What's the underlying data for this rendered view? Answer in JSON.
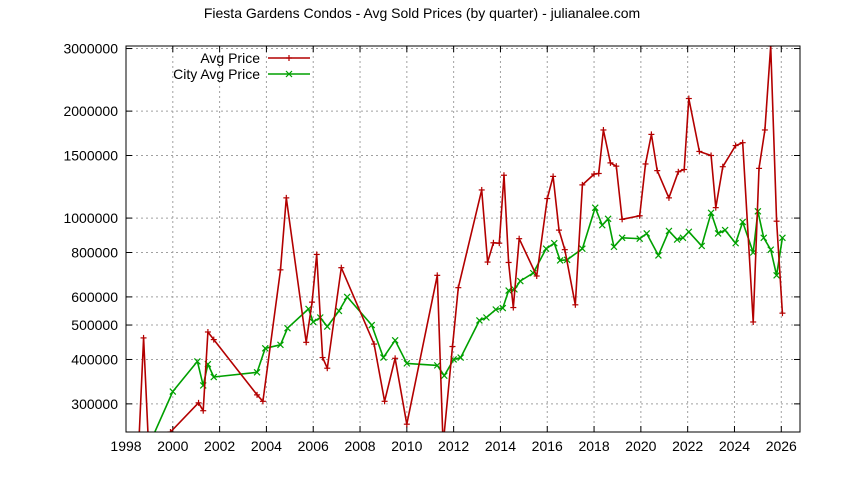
{
  "chart_data": {
    "type": "line",
    "title": "Fiesta Gardens Condos - Avg Sold Prices (by quarter) - julianalee.com",
    "xlabel": "",
    "ylabel": "",
    "xlim": [
      1998,
      2026.8
    ],
    "ylim": [
      250000,
      3050000
    ],
    "yscale": "log",
    "grid": true,
    "legend_position": "top-left",
    "x_ticks": [
      "1998",
      "2000",
      "2002",
      "2004",
      "2006",
      "2008",
      "2010",
      "2012",
      "2014",
      "2016",
      "2018",
      "2020",
      "2022",
      "2024",
      "2026"
    ],
    "y_ticks": [
      "300000",
      "400000",
      "500000",
      "600000",
      "800000",
      "1000000",
      "1500000",
      "2000000",
      "3000000"
    ],
    "series": [
      {
        "name": "Avg Price",
        "color": "#b30000",
        "marker": "plus",
        "points": [
          [
            1998.55,
            235000
          ],
          [
            1998.75,
            460000
          ],
          [
            1998.95,
            240000
          ],
          [
            1999.9,
            250000
          ],
          [
            2001.1,
            302000
          ],
          [
            2001.3,
            287000
          ],
          [
            2001.5,
            478000
          ],
          [
            2001.75,
            455000
          ],
          [
            2003.6,
            318000
          ],
          [
            2003.85,
            305000
          ],
          [
            2004.6,
            715000
          ],
          [
            2004.85,
            1140000
          ],
          [
            2005.7,
            447000
          ],
          [
            2005.95,
            580000
          ],
          [
            2006.15,
            790000
          ],
          [
            2006.4,
            405000
          ],
          [
            2006.6,
            378000
          ],
          [
            2007.2,
            725000
          ],
          [
            2008.6,
            442000
          ],
          [
            2009.05,
            305000
          ],
          [
            2009.5,
            403000
          ],
          [
            2010.0,
            263000
          ],
          [
            2011.3,
            690000
          ],
          [
            2011.55,
            230000
          ],
          [
            2011.95,
            435000
          ],
          [
            2012.2,
            637000
          ],
          [
            2013.2,
            1200000
          ],
          [
            2013.45,
            752000
          ],
          [
            2013.7,
            852000
          ],
          [
            2013.95,
            850000
          ],
          [
            2014.15,
            1320000
          ],
          [
            2014.35,
            750000
          ],
          [
            2014.55,
            560000
          ],
          [
            2014.8,
            875000
          ],
          [
            2015.55,
            687000
          ],
          [
            2016.0,
            1135000
          ],
          [
            2016.25,
            1310000
          ],
          [
            2016.5,
            925000
          ],
          [
            2016.75,
            815000
          ],
          [
            2017.2,
            570000
          ],
          [
            2017.5,
            1240000
          ],
          [
            2018.0,
            1330000
          ],
          [
            2018.2,
            1335000
          ],
          [
            2018.4,
            1770000
          ],
          [
            2018.7,
            1430000
          ],
          [
            2018.95,
            1400000
          ],
          [
            2019.2,
            992000
          ],
          [
            2019.95,
            1015000
          ],
          [
            2020.2,
            1420000
          ],
          [
            2020.45,
            1720000
          ],
          [
            2020.7,
            1360000
          ],
          [
            2021.2,
            1140000
          ],
          [
            2021.6,
            1350000
          ],
          [
            2021.85,
            1370000
          ],
          [
            2022.05,
            2170000
          ],
          [
            2022.5,
            1540000
          ],
          [
            2023.0,
            1500000
          ],
          [
            2023.2,
            1070000
          ],
          [
            2023.5,
            1395000
          ],
          [
            2024.05,
            1600000
          ],
          [
            2024.35,
            1630000
          ],
          [
            2024.8,
            510000
          ],
          [
            2025.05,
            1380000
          ],
          [
            2025.3,
            1770000
          ],
          [
            2025.55,
            3050000
          ],
          [
            2025.8,
            980000
          ],
          [
            2026.05,
            540000
          ]
        ]
      },
      {
        "name": "City Avg Price",
        "color": "#00a000",
        "marker": "x",
        "points": [
          [
            1998.75,
            240000
          ],
          [
            1999.05,
            235000
          ],
          [
            2000.0,
            325000
          ],
          [
            2001.05,
            395000
          ],
          [
            2001.3,
            338000
          ],
          [
            2001.5,
            388000
          ],
          [
            2001.75,
            357000
          ],
          [
            2003.6,
            368000
          ],
          [
            2003.95,
            430000
          ],
          [
            2004.6,
            440000
          ],
          [
            2004.9,
            490000
          ],
          [
            2005.8,
            555000
          ],
          [
            2006.0,
            510000
          ],
          [
            2006.3,
            525000
          ],
          [
            2006.6,
            495000
          ],
          [
            2007.1,
            548000
          ],
          [
            2007.45,
            600000
          ],
          [
            2008.5,
            500000
          ],
          [
            2009.0,
            405000
          ],
          [
            2009.5,
            453000
          ],
          [
            2010.0,
            390000
          ],
          [
            2011.3,
            385000
          ],
          [
            2011.6,
            360000
          ],
          [
            2012.0,
            400000
          ],
          [
            2012.3,
            405000
          ],
          [
            2013.1,
            515000
          ],
          [
            2013.4,
            525000
          ],
          [
            2013.8,
            553000
          ],
          [
            2014.1,
            558000
          ],
          [
            2014.35,
            625000
          ],
          [
            2014.6,
            630000
          ],
          [
            2014.85,
            665000
          ],
          [
            2015.4,
            700000
          ],
          [
            2015.95,
            820000
          ],
          [
            2016.3,
            850000
          ],
          [
            2016.55,
            760000
          ],
          [
            2016.85,
            763000
          ],
          [
            2017.5,
            820000
          ],
          [
            2018.05,
            1070000
          ],
          [
            2018.35,
            955000
          ],
          [
            2018.6,
            995000
          ],
          [
            2018.85,
            830000
          ],
          [
            2019.2,
            880000
          ],
          [
            2019.95,
            875000
          ],
          [
            2020.25,
            905000
          ],
          [
            2020.75,
            785000
          ],
          [
            2021.2,
            920000
          ],
          [
            2021.55,
            870000
          ],
          [
            2021.8,
            880000
          ],
          [
            2022.05,
            915000
          ],
          [
            2022.6,
            835000
          ],
          [
            2023.0,
            1035000
          ],
          [
            2023.3,
            905000
          ],
          [
            2023.6,
            925000
          ],
          [
            2024.05,
            850000
          ],
          [
            2024.35,
            975000
          ],
          [
            2024.8,
            800000
          ],
          [
            2025.0,
            1045000
          ],
          [
            2025.25,
            880000
          ],
          [
            2025.55,
            815000
          ],
          [
            2025.8,
            690000
          ],
          [
            2026.05,
            880000
          ]
        ]
      }
    ]
  }
}
